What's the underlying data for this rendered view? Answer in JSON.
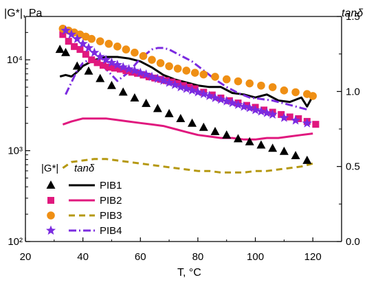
{
  "chart_data": {
    "type": "scatter",
    "x_axis": {
      "label": "T, °C",
      "range": [
        20,
        130
      ],
      "ticks": [
        20,
        40,
        60,
        80,
        100,
        120
      ]
    },
    "y_left": {
      "label": "|G*|, Pa",
      "scale": "log",
      "range": [
        100,
        30000
      ],
      "ticks": [
        100,
        1000,
        10000
      ],
      "tick_labels": [
        "10²",
        "10³",
        "10⁴"
      ]
    },
    "y_right": {
      "label": "tanδ",
      "scale": "linear",
      "range": [
        0.0,
        1.5
      ],
      "ticks": [
        0.0,
        0.5,
        1.0,
        1.5
      ],
      "tick_labels": [
        "0.0",
        "0.5",
        "1.0",
        "1.5"
      ]
    },
    "legend": {
      "col_header_modulus": "|G*|",
      "col_header_tan": "tanδ",
      "placement": "bottom-left"
    },
    "series": [
      {
        "name": "PIB1",
        "color": "#000000",
        "marker": "triangle",
        "line_style": "solid",
        "modulus": {
          "x": [
            32,
            34,
            38,
            42,
            46,
            50,
            54,
            58,
            62,
            66,
            70,
            74,
            78,
            82,
            86,
            90,
            94,
            98,
            102,
            106,
            110,
            114,
            118
          ],
          "y": [
            13000,
            12000,
            8500,
            7500,
            6200,
            5200,
            4400,
            3800,
            3300,
            2900,
            2550,
            2250,
            2000,
            1800,
            1620,
            1480,
            1350,
            1250,
            1150,
            1060,
            980,
            880,
            780
          ]
        },
        "tan_delta": {
          "x": [
            32,
            34,
            36,
            38,
            40,
            44,
            48,
            52,
            56,
            60,
            64,
            68,
            72,
            76,
            80,
            84,
            88,
            92,
            96,
            100,
            104,
            108,
            112,
            116,
            118,
            120
          ],
          "y": [
            1.1,
            1.11,
            1.1,
            1.13,
            1.17,
            1.21,
            1.23,
            1.23,
            1.22,
            1.2,
            1.16,
            1.11,
            1.08,
            1.06,
            1.04,
            1.03,
            1.03,
            0.99,
            0.98,
            0.96,
            0.98,
            0.94,
            0.93,
            0.96,
            0.9,
            0.97
          ]
        }
      },
      {
        "name": "PIB2",
        "color": "#e0187e",
        "marker": "square",
        "line_style": "solid",
        "modulus": {
          "x": [
            33,
            35,
            37,
            39,
            41,
            43,
            45,
            47,
            49,
            51,
            53,
            55,
            57,
            59,
            61,
            63,
            65,
            67,
            69,
            71,
            73,
            75,
            77,
            79,
            82,
            85,
            88,
            91,
            94,
            97,
            100,
            103,
            106,
            109,
            112,
            115,
            118,
            121
          ],
          "y": [
            19000,
            16000,
            14000,
            13000,
            11500,
            10000,
            9300,
            8700,
            8300,
            8100,
            7900,
            7600,
            7300,
            7100,
            6800,
            6500,
            6300,
            6100,
            5900,
            5700,
            5500,
            5200,
            5000,
            4800,
            4400,
            4100,
            3800,
            3550,
            3350,
            3150,
            3000,
            2800,
            2650,
            2500,
            2350,
            2250,
            2100,
            1950
          ]
        },
        "tan_delta": {
          "x": [
            33,
            36,
            40,
            44,
            48,
            52,
            56,
            60,
            64,
            68,
            72,
            76,
            80,
            84,
            88,
            92,
            96,
            100,
            104,
            108,
            112,
            116,
            120
          ],
          "y": [
            0.78,
            0.8,
            0.82,
            0.82,
            0.82,
            0.81,
            0.8,
            0.79,
            0.78,
            0.77,
            0.75,
            0.73,
            0.71,
            0.7,
            0.69,
            0.69,
            0.68,
            0.68,
            0.69,
            0.69,
            0.7,
            0.71,
            0.72
          ]
        }
      },
      {
        "name": "PIB3",
        "color": "#ef8f14",
        "line_color": "#b59810",
        "marker": "circle",
        "line_style": "dashed",
        "modulus": {
          "x": [
            33,
            35,
            37,
            39,
            41,
            43,
            46,
            49,
            52,
            55,
            58,
            61,
            64,
            67,
            70,
            73,
            76,
            79,
            82,
            86,
            90,
            94,
            98,
            102,
            106,
            110,
            114,
            118,
            120
          ],
          "y": [
            22000,
            21000,
            20000,
            19000,
            18000,
            17000,
            16000,
            15000,
            14000,
            13000,
            12000,
            11000,
            10000,
            9200,
            8500,
            8000,
            7600,
            7200,
            6900,
            6500,
            6100,
            5800,
            5500,
            5200,
            5000,
            4600,
            4400,
            4200,
            4000
          ]
        },
        "tan_delta": {
          "x": [
            33,
            36,
            40,
            44,
            48,
            52,
            56,
            60,
            64,
            68,
            72,
            76,
            80,
            84,
            88,
            92,
            96,
            100,
            104,
            108,
            112,
            116,
            120
          ],
          "y": [
            0.49,
            0.53,
            0.54,
            0.55,
            0.55,
            0.54,
            0.53,
            0.52,
            0.51,
            0.5,
            0.49,
            0.48,
            0.47,
            0.47,
            0.46,
            0.46,
            0.46,
            0.47,
            0.47,
            0.48,
            0.49,
            0.5,
            0.52
          ]
        }
      },
      {
        "name": "PIB4",
        "color": "#7b2be0",
        "marker": "star",
        "line_style": "dashdot",
        "modulus": {
          "x": [
            34,
            36,
            38,
            40,
            42,
            44,
            46,
            48,
            50,
            52,
            54,
            56,
            58,
            60,
            62,
            64,
            66,
            68,
            70,
            72,
            74,
            76,
            78,
            80,
            82,
            84,
            86,
            88,
            90,
            92,
            94,
            96,
            98,
            100,
            102,
            104,
            106,
            110,
            114,
            118
          ],
          "y": [
            21000,
            19000,
            17000,
            15000,
            13500,
            12000,
            10800,
            10000,
            9300,
            8800,
            8300,
            7900,
            7600,
            7200,
            6900,
            6500,
            6200,
            5900,
            5600,
            5300,
            5000,
            4800,
            4600,
            4400,
            4200,
            4000,
            3800,
            3650,
            3500,
            3350,
            3200,
            3050,
            2950,
            2800,
            2700,
            2600,
            2500,
            2300,
            2150,
            2000
          ]
        },
        "tan_delta": {
          "x": [
            34,
            36,
            38,
            40,
            42,
            44,
            46,
            48,
            52,
            56,
            60,
            64,
            66,
            68,
            70,
            74,
            78,
            82,
            86,
            90,
            94,
            98,
            102,
            106,
            110,
            114,
            118
          ],
          "y": [
            0.98,
            1.06,
            1.14,
            1.19,
            1.21,
            1.2,
            1.18,
            1.15,
            1.07,
            1.13,
            1.22,
            1.28,
            1.29,
            1.29,
            1.28,
            1.24,
            1.2,
            1.14,
            1.08,
            1.03,
            0.99,
            0.96,
            0.95,
            0.94,
            0.92,
            0.9,
            0.88
          ]
        }
      }
    ]
  }
}
